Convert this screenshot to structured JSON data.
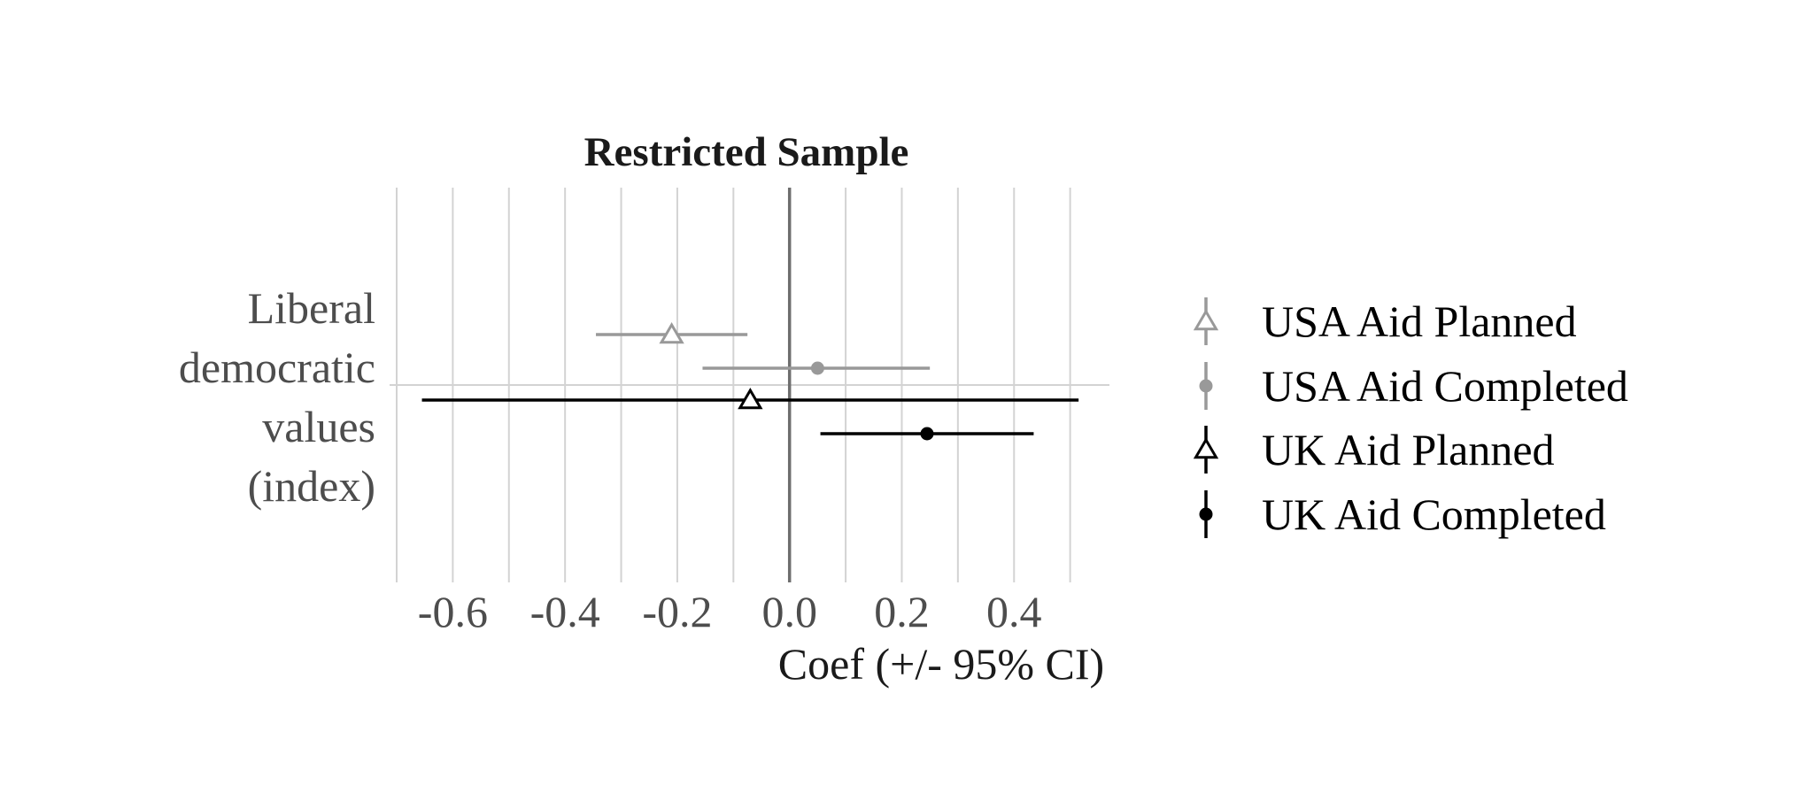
{
  "chart_data": {
    "type": "scatter",
    "title": "Restricted Sample",
    "xlabel": "Coef (+/- 95% CI)",
    "ylabel": "",
    "y_category_label": [
      "Liberal",
      "democratic",
      "values",
      "(index)"
    ],
    "xlim": [
      -0.7,
      0.57
    ],
    "x_ticks": [
      -0.6,
      -0.4,
      -0.2,
      0.0,
      0.2,
      0.4
    ],
    "x_tick_labels": [
      "-0.6",
      "-0.4",
      "-0.2",
      "0.0",
      "0.2",
      "0.4"
    ],
    "minor_gridlines": [
      -0.7,
      -0.5,
      -0.3,
      -0.1,
      0.1,
      0.3,
      0.5
    ],
    "grid": true,
    "legend_position": "right",
    "series": [
      {
        "name": "USA Aid Planned",
        "estimate": -0.21,
        "ci_low": -0.345,
        "ci_high": -0.075,
        "color": "#999999",
        "marker": "open-triangle"
      },
      {
        "name": "USA Aid Completed",
        "estimate": 0.05,
        "ci_low": -0.155,
        "ci_high": 0.25,
        "color": "#999999",
        "marker": "filled-circle"
      },
      {
        "name": "UK Aid Planned",
        "estimate": -0.07,
        "ci_low": -0.655,
        "ci_high": 0.515,
        "color": "#000000",
        "marker": "open-triangle"
      },
      {
        "name": "UK Aid Completed",
        "estimate": 0.245,
        "ci_low": 0.055,
        "ci_high": 0.435,
        "color": "#000000",
        "marker": "filled-circle"
      }
    ]
  }
}
